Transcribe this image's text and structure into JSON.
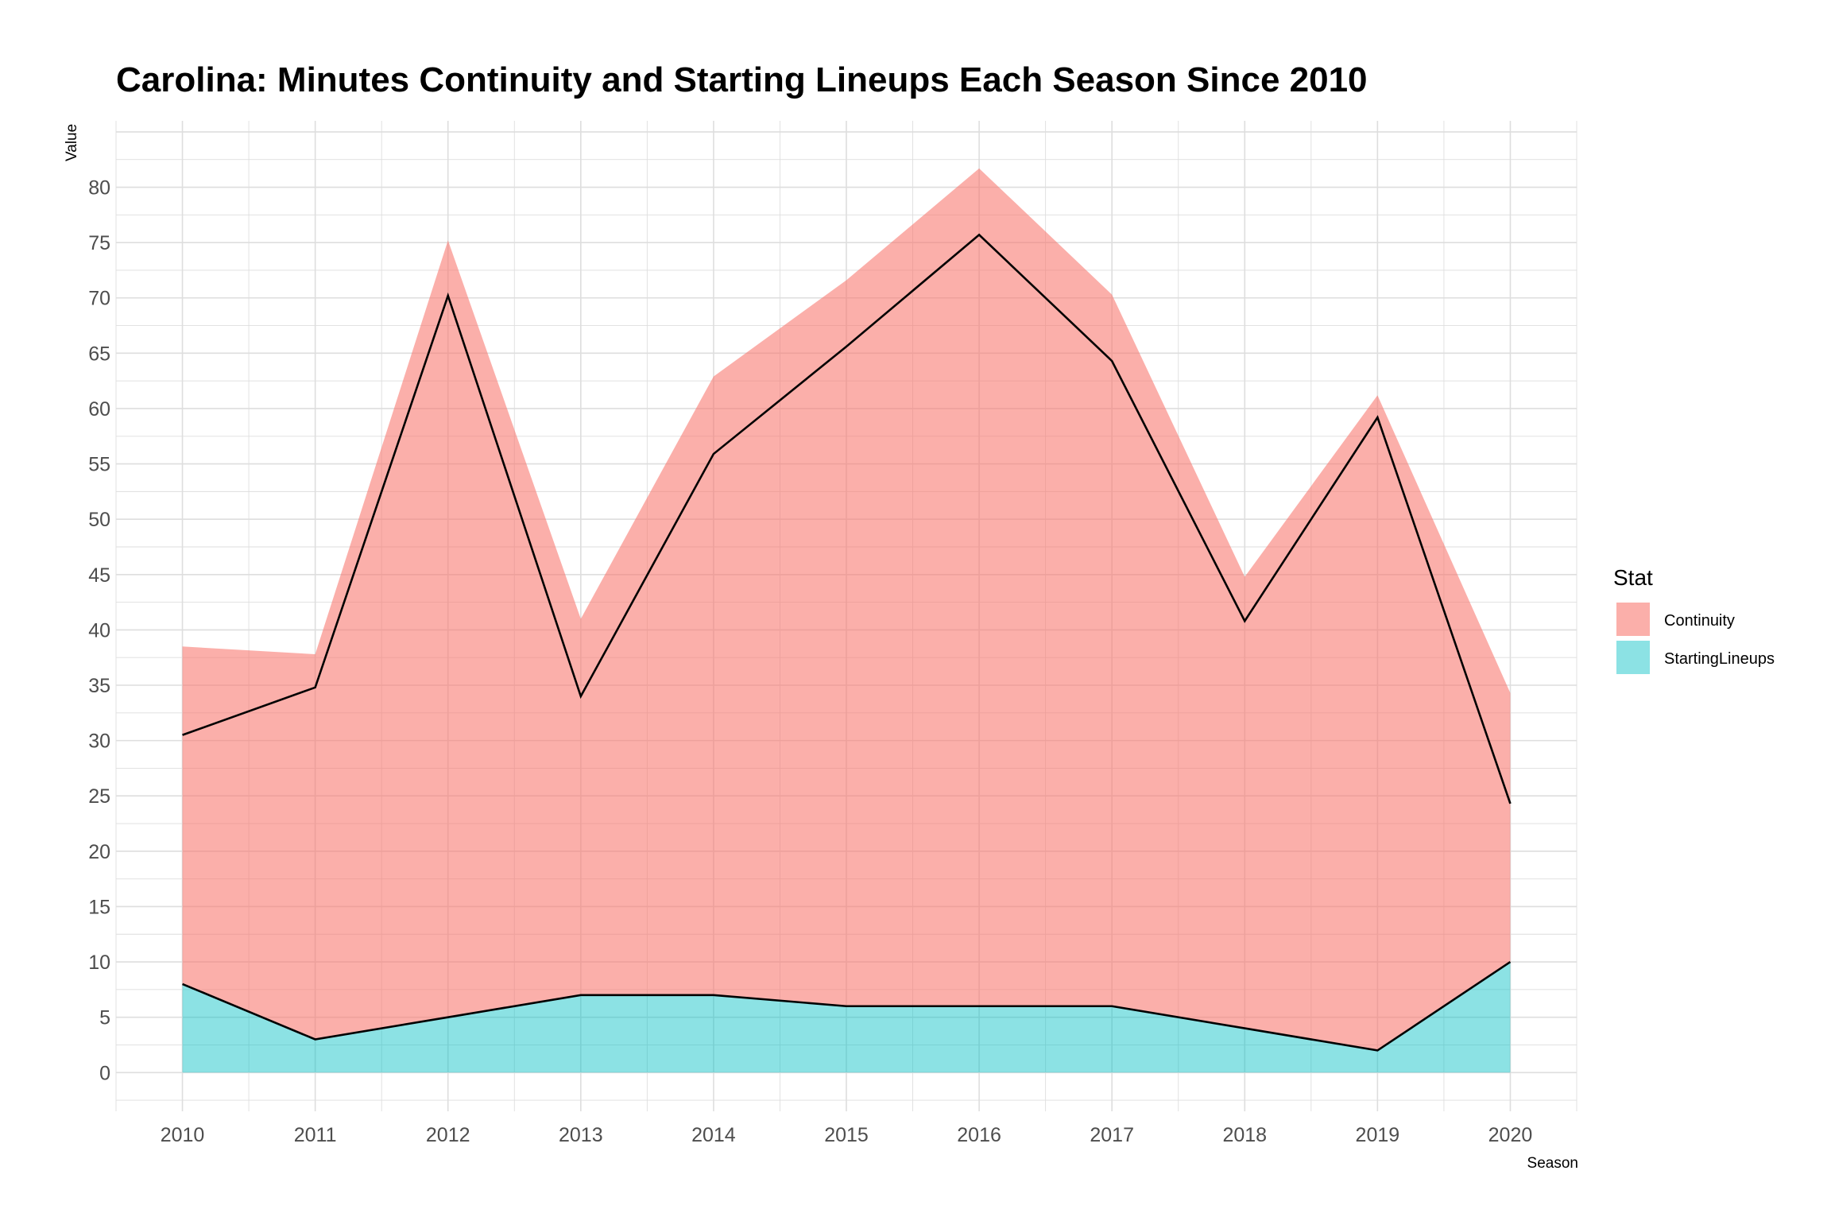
{
  "chart_data": {
    "type": "area",
    "title": "Carolina: Minutes Continuity and Starting Lineups Each Season Since 2010",
    "xlabel": "Season",
    "ylabel": "Value",
    "x": [
      2010,
      2011,
      2012,
      2013,
      2014,
      2015,
      2016,
      2017,
      2018,
      2019,
      2020
    ],
    "x_tick_labels": [
      "2010",
      "2011",
      "2012",
      "2013",
      "2014",
      "2015",
      "2016",
      "2017",
      "2018",
      "2019",
      "2020"
    ],
    "y_ticks": [
      0,
      5,
      10,
      15,
      20,
      25,
      30,
      35,
      40,
      45,
      50,
      55,
      60,
      65,
      70,
      75,
      80
    ],
    "y_tick_labels": [
      "0",
      "5",
      "10",
      "15",
      "20",
      "25",
      "30",
      "35",
      "40",
      "45",
      "50",
      "55",
      "60",
      "65",
      "70",
      "75",
      "80"
    ],
    "xlim": [
      2009.5,
      2020.5
    ],
    "ylim": [
      -3.5,
      86
    ],
    "stacked": true,
    "series": [
      {
        "name": "StartingLineups",
        "color": "#00BFC4",
        "values": [
          8,
          3,
          5,
          7,
          7,
          6,
          6,
          6,
          4,
          2,
          10
        ]
      },
      {
        "name": "Continuity",
        "color": "#F8766D",
        "values": [
          30.5,
          34.8,
          70.2,
          34,
          55.9,
          65.6,
          75.7,
          64.3,
          40.8,
          59.2,
          24.3
        ]
      }
    ],
    "stacked_totals": [
      38.5,
      37.8,
      75.2,
      41,
      62.9,
      71.6,
      81.7,
      70.3,
      44.8,
      61.2,
      34.3
    ],
    "legend": {
      "title": "Stat",
      "placement": "right",
      "entries": [
        "Continuity",
        "StartingLineups"
      ]
    },
    "grid": true
  }
}
